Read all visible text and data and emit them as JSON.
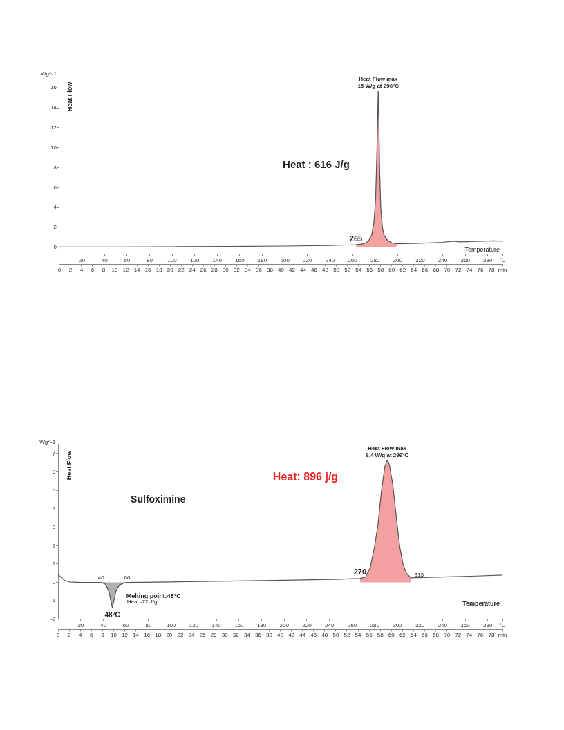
{
  "chart_data": [
    {
      "type": "line",
      "ylabel": "Heat Flow",
      "xlabel": "Temperature",
      "x": [
        0,
        50,
        100,
        150,
        200,
        240,
        263,
        270,
        274,
        277,
        279,
        280.5,
        281.5,
        282.3,
        282.8,
        283.3,
        284,
        285,
        286.5,
        288,
        291,
        295,
        299,
        320,
        340,
        349,
        355,
        370,
        385,
        393
      ],
      "series": [
        {
          "type": "area",
          "color": "#f2a0a0",
          "x": [
            263,
            270,
            274,
            277,
            279,
            280.5,
            281.5,
            282.3,
            282.8,
            283.3,
            284,
            285,
            286.5,
            288,
            291,
            295,
            299
          ],
          "values": [
            0.25,
            0.35,
            0.6,
            1.2,
            2.5,
            5,
            9,
            13,
            15.7,
            13,
            8,
            4,
            2,
            1.2,
            0.7,
            0.45,
            0.35
          ]
        },
        {
          "color": "#555555",
          "values": [
            0.02,
            0.03,
            0.05,
            0.08,
            0.12,
            0.18,
            0.25,
            0.35,
            0.6,
            1.2,
            2.5,
            5,
            9,
            13,
            15.7,
            13,
            8,
            4,
            2,
            1.2,
            0.7,
            0.45,
            0.35,
            0.4,
            0.5,
            0.62,
            0.55,
            0.6,
            0.65,
            0.62
          ]
        }
      ],
      "annotations": [
        "Wg^-1",
        "Heat : 616 J/g",
        {
          "text": "Heat Flow max",
          "x": 282.8,
          "y": 15.7
        },
        {
          "text": "15 W/g at 296°C",
          "x": 282.8,
          "y": 15.7
        },
        {
          "text": "265",
          "x": 263,
          "y": 0.25
        }
      ],
      "xlim": [
        0,
        393
      ],
      "xticks": [
        20,
        40,
        60,
        80,
        100,
        120,
        140,
        160,
        180,
        200,
        220,
        240,
        260,
        280,
        300,
        320,
        340,
        360,
        380,
        {
          "value": 393,
          "label": "°C"
        }
      ],
      "x2lim": [
        0,
        80
      ],
      "x2ticks": [
        0,
        2,
        4,
        6,
        8,
        10,
        12,
        14,
        16,
        18,
        20,
        22,
        24,
        26,
        28,
        30,
        32,
        34,
        36,
        38,
        40,
        42,
        44,
        46,
        48,
        50,
        52,
        54,
        56,
        58,
        60,
        62,
        64,
        66,
        68,
        70,
        72,
        74,
        76,
        78,
        {
          "value": 80,
          "label": "min"
        }
      ],
      "ylim": [
        -0.7,
        17.2
      ],
      "yticks": [
        0,
        2,
        4,
        6,
        8,
        10,
        12,
        14,
        16
      ]
    },
    {
      "type": "line",
      "title": "Sulfoximine",
      "ylabel": "Heat Flow",
      "xlabel": "Temperature",
      "x": [
        0,
        3,
        6,
        10,
        20,
        38,
        42,
        45,
        47,
        48,
        49,
        51,
        54,
        58,
        61,
        100,
        150,
        200,
        250,
        267,
        272,
        276,
        280,
        283,
        286,
        289,
        291,
        293,
        296,
        299,
        302,
        305,
        308,
        312,
        340,
        370,
        393
      ],
      "series": [
        {
          "type": "area",
          "color": "#b0b0b0",
          "x": [
            38,
            42,
            45,
            47,
            48,
            49,
            51,
            54,
            58,
            61
          ],
          "values": [
            0,
            -0.1,
            -0.5,
            -1.1,
            -1.37,
            -1.1,
            -0.5,
            -0.15,
            -0.03,
            0
          ]
        },
        {
          "type": "area",
          "color": "#f2a0a0",
          "x": [
            267,
            272,
            276,
            280,
            283,
            286,
            289,
            291,
            293,
            296,
            299,
            302,
            305,
            308,
            312
          ],
          "values": [
            0.22,
            0.3,
            0.8,
            2,
            3.2,
            5,
            6.3,
            6.65,
            6.4,
            5.3,
            3.6,
            2,
            1,
            0.5,
            0.25
          ]
        },
        {
          "color": "#555555",
          "values": [
            0.45,
            0.25,
            0.1,
            0.03,
            0,
            0,
            -0.1,
            -0.5,
            -1.1,
            -1.37,
            -1.1,
            -0.5,
            -0.15,
            -0.03,
            0,
            0.03,
            0.07,
            0.12,
            0.18,
            0.22,
            0.3,
            0.8,
            2,
            3.2,
            5,
            6.3,
            6.65,
            6.4,
            5.3,
            3.6,
            2,
            1,
            0.5,
            0.25,
            0.3,
            0.35,
            0.4
          ]
        }
      ],
      "annotations": [
        "Wg^-1",
        "Heat: 896 j/g",
        "Heat:-72 J/g",
        {
          "text": "Heat Flow max",
          "x": 291,
          "y": 6.65
        },
        {
          "text": "6.4 W/g at 296°C",
          "x": 291,
          "y": 6.65
        },
        {
          "text": "270",
          "x": 267,
          "y": 0.22
        },
        {
          "text": "315",
          "x": 312,
          "y": 0.25
        },
        {
          "text": "40",
          "x": 38,
          "y": 0
        },
        {
          "text": "60",
          "x": 61,
          "y": 0
        },
        {
          "text": "48°C",
          "x": 48,
          "y": -1.37
        },
        {
          "text": "Melting point:48°C",
          "x": 48,
          "y": -1.37
        }
      ],
      "xlim": [
        0,
        393
      ],
      "xticks": [
        20,
        40,
        60,
        80,
        100,
        120,
        140,
        160,
        180,
        200,
        220,
        240,
        260,
        280,
        300,
        320,
        340,
        360,
        380,
        {
          "value": 393,
          "label": "°C"
        }
      ],
      "x2lim": [
        0,
        80
      ],
      "x2ticks": [
        0,
        2,
        4,
        6,
        8,
        10,
        12,
        14,
        16,
        18,
        20,
        22,
        24,
        26,
        28,
        30,
        32,
        34,
        36,
        38,
        40,
        42,
        44,
        46,
        48,
        50,
        52,
        54,
        56,
        58,
        60,
        62,
        64,
        66,
        68,
        70,
        72,
        74,
        76,
        78,
        {
          "value": 80,
          "label": "min"
        }
      ],
      "ylim": [
        -2,
        7.5
      ],
      "yticks": [
        -2,
        -1,
        0,
        1,
        2,
        3,
        4,
        5,
        6,
        7
      ]
    }
  ]
}
